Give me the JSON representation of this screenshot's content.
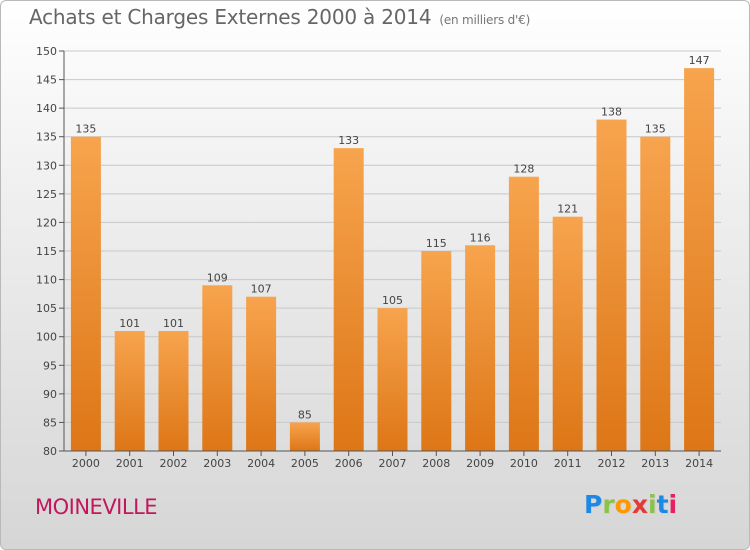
{
  "title": "Achats et Charges Externes 2000 à 2014",
  "subtitle": "(en milliers d'€)",
  "location": "MOINEVILLE",
  "logo": {
    "letters": [
      "P",
      "r",
      "o",
      "x",
      "i",
      "t",
      "i"
    ],
    "colors": [
      "#1e88e5",
      "#8bc34a",
      "#ff9800",
      "#e53935",
      "#8bc34a",
      "#1e88e5",
      "#e91e63"
    ]
  },
  "colors": {
    "bar_light": "#f7a44e",
    "bar_dark": "#dd7616",
    "axis": "#555555",
    "grid": "#c8c8c8"
  },
  "chart_data": {
    "type": "bar",
    "categories": [
      "2000",
      "2001",
      "2002",
      "2003",
      "2004",
      "2005",
      "2006",
      "2007",
      "2008",
      "2009",
      "2010",
      "2011",
      "2012",
      "2013",
      "2014"
    ],
    "values": [
      135,
      101,
      101,
      109,
      107,
      85,
      133,
      105,
      115,
      116,
      128,
      121,
      138,
      135,
      147
    ],
    "ylim": [
      80,
      150
    ],
    "yticks": [
      80,
      85,
      90,
      95,
      100,
      105,
      110,
      115,
      120,
      125,
      130,
      135,
      140,
      145,
      150
    ],
    "grid": true,
    "xlabel": "",
    "ylabel": ""
  }
}
